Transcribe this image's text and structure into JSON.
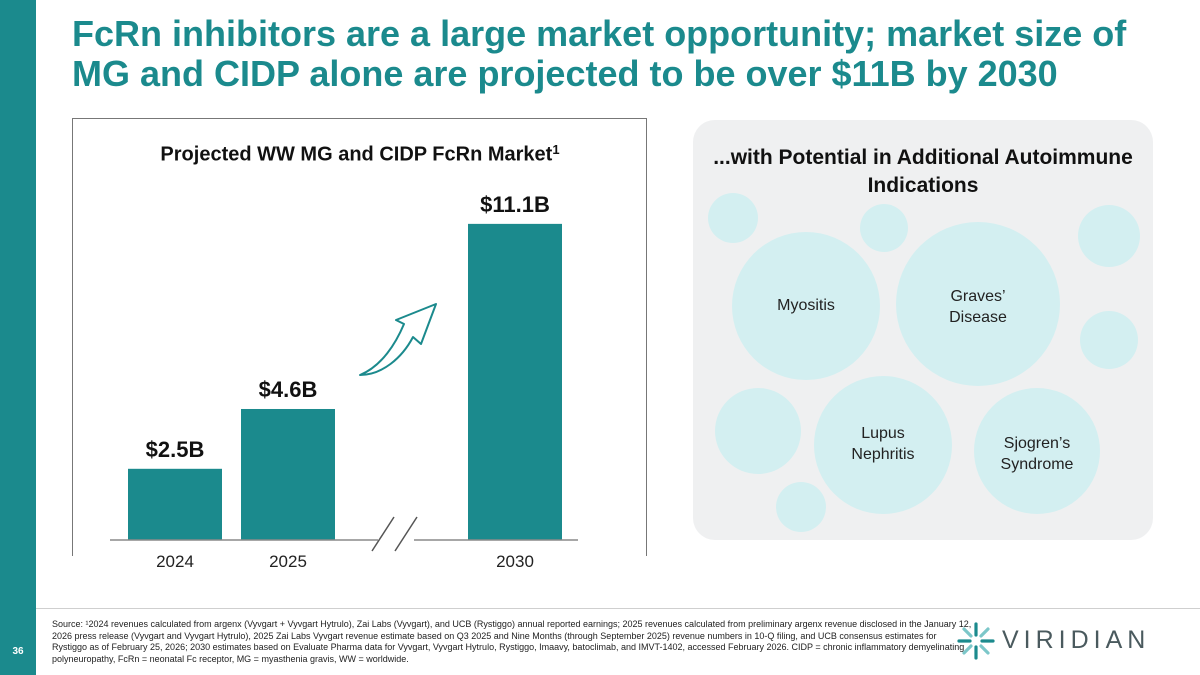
{
  "slide": {
    "title": "FcRn inhibitors are a large market opportunity; market size of MG and CIDP alone are projected to be over $11B by 2030",
    "page_number": "36",
    "accent_color": "#1b8a8d"
  },
  "chart_data": {
    "type": "bar",
    "title": "Projected WW MG and CIDP FcRn Market",
    "title_superscript": "1",
    "categories": [
      "2024",
      "2025",
      "2030"
    ],
    "values": [
      2.5,
      4.6,
      11.1
    ],
    "value_labels": [
      "$2.5B",
      "$4.6B",
      "$11.1B"
    ],
    "unit": "$B",
    "xlabel": "",
    "ylabel": "",
    "ylim": [
      0,
      12.5
    ],
    "axis_break": "between 2025 and 2030",
    "bar_color": "#1b8a8d",
    "grid": false,
    "trend_arrow": "up-right"
  },
  "indications": {
    "title": "...with Potential in Additional Autoimmune Indications",
    "items": [
      "Myositis",
      "Graves’ Disease",
      "Lupus Nephritis",
      "Sjogren’s Syndrome"
    ],
    "bubble_color": "#d3eff1"
  },
  "footnote": {
    "text": "Source: ¹2024 revenues calculated from argenx (Vyvgart + Vyvgart Hytrulo), Zai Labs (Vyvgart), and UCB (Rystiggo) annual reported earnings; 2025 revenues calculated from preliminary argenx revenue disclosed in the January 12, 2026 press release (Vyvgart and Vyvgart Hytrulo), 2025 Zai Labs Vyvgart revenue estimate based on Q3 2025 and Nine Months (through September 2025) revenue numbers in 10-Q filing, and UCB consensus estimates for Rystiggo as of February 25, 2026; 2030 estimates based on Evaluate Pharma data for Vyvgart, Vyvgart Hytrulo, Rystiggo, Imaavy, batoclimab, and IMVT-1402, accessed February 2026. CIDP = chronic inflammatory demyelinating polyneuropathy, FcRn = neonatal Fc receptor, MG = myasthenia gravis, WW = worldwide."
  },
  "logo": {
    "text": "VIRIDIAN",
    "icon": "viridian-star-icon"
  }
}
